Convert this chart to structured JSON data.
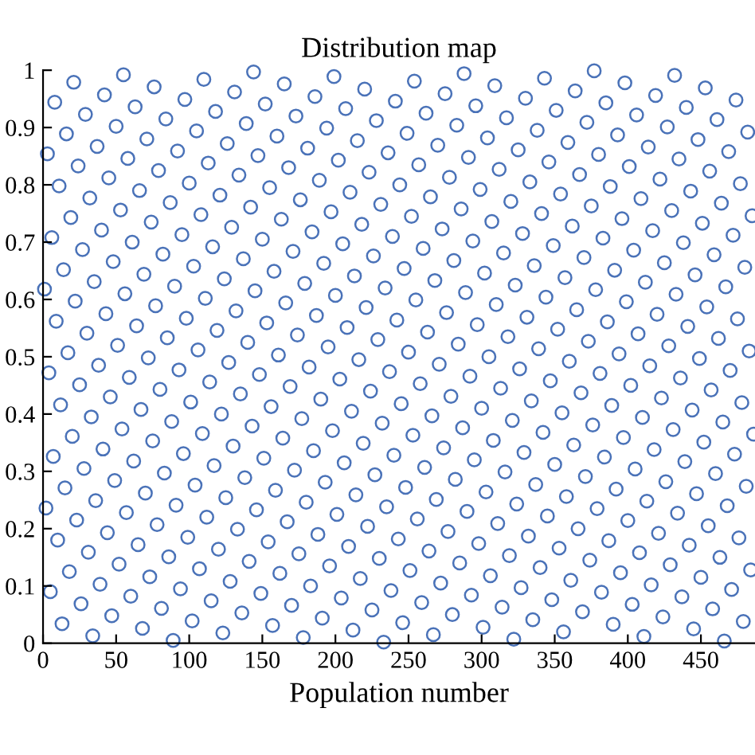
{
  "chart_data": {
    "type": "scatter",
    "title": "Distribution map",
    "xlabel": "Population number",
    "xlim": [
      0,
      487
    ],
    "ylim": [
      0,
      1
    ],
    "xticks": [
      0,
      50,
      100,
      150,
      200,
      250,
      300,
      350,
      400,
      450
    ],
    "yticks": [
      0,
      0.1,
      0.2,
      0.3,
      0.4,
      0.5,
      0.6,
      0.7,
      0.8,
      0.9,
      1
    ],
    "marker": "circle",
    "series": [
      {
        "color": "#4a72b8",
        "x": [
          1,
          2,
          3,
          4,
          5,
          6,
          7,
          8,
          9,
          10,
          11,
          12,
          13,
          14,
          15,
          16,
          17,
          18,
          19,
          20,
          21,
          22,
          23,
          24,
          25,
          26,
          27,
          28,
          29,
          30,
          31,
          32,
          33,
          34,
          35,
          36,
          37,
          38,
          39,
          40,
          41,
          42,
          43,
          44,
          45,
          46,
          47,
          48,
          49,
          50,
          51,
          52,
          53,
          54,
          55,
          56,
          57,
          58,
          59,
          60,
          61,
          62,
          63,
          64,
          65,
          66,
          67,
          68,
          69,
          70,
          71,
          72,
          73,
          74,
          75,
          76,
          77,
          78,
          79,
          80,
          81,
          82,
          83,
          84,
          85,
          86,
          87,
          88,
          89,
          90,
          91,
          92,
          93,
          94,
          95,
          96,
          97,
          98,
          99,
          100,
          101,
          102,
          103,
          104,
          105,
          106,
          107,
          108,
          109,
          110,
          111,
          112,
          113,
          114,
          115,
          116,
          117,
          118,
          119,
          120,
          121,
          122,
          123,
          124,
          125,
          126,
          127,
          128,
          129,
          130,
          131,
          132,
          133,
          134,
          135,
          136,
          137,
          138,
          139,
          140,
          141,
          142,
          143,
          144,
          145,
          146,
          147,
          148,
          149,
          150,
          151,
          152,
          153,
          154,
          155,
          156,
          157,
          158,
          159,
          160,
          161,
          162,
          163,
          164,
          165,
          166,
          167,
          168,
          169,
          170,
          171,
          172,
          173,
          174,
          175,
          176,
          177,
          178,
          179,
          180,
          181,
          182,
          183,
          184,
          185,
          186,
          187,
          188,
          189,
          190,
          191,
          192,
          193,
          194,
          195,
          196,
          197,
          198,
          199,
          200,
          201,
          202,
          203,
          204,
          205,
          206,
          207,
          208,
          209,
          210,
          211,
          212,
          213,
          214,
          215,
          216,
          217,
          218,
          219,
          220,
          221,
          222,
          223,
          224,
          225,
          226,
          227,
          228,
          229,
          230,
          231,
          232,
          233,
          234,
          235,
          236,
          237,
          238,
          239,
          240,
          241,
          242,
          243,
          244,
          245,
          246,
          247,
          248,
          249,
          250,
          251,
          252,
          253,
          254,
          255,
          256,
          257,
          258,
          259,
          260,
          261,
          262,
          263,
          264,
          265,
          266,
          267,
          268,
          269,
          270,
          271,
          272,
          273,
          274,
          275,
          276,
          277,
          278,
          279,
          280,
          281,
          282,
          283,
          284,
          285,
          286,
          287,
          288,
          289,
          290,
          291,
          292,
          293,
          294,
          295,
          296,
          297,
          298,
          299,
          300,
          301,
          302,
          303,
          304,
          305,
          306,
          307,
          308,
          309,
          310,
          311,
          312,
          313,
          314,
          315,
          316,
          317,
          318,
          319,
          320,
          321,
          322,
          323,
          324,
          325,
          326,
          327,
          328,
          329,
          330,
          331,
          332,
          333,
          334,
          335,
          336,
          337,
          338,
          339,
          340,
          341,
          342,
          343,
          344,
          345,
          346,
          347,
          348,
          349,
          350,
          351,
          352,
          353,
          354,
          355,
          356,
          357,
          358,
          359,
          360,
          361,
          362,
          363,
          364,
          365,
          366,
          367,
          368,
          369,
          370,
          371,
          372,
          373,
          374,
          375,
          376,
          377,
          378,
          379,
          380,
          381,
          382,
          383,
          384,
          385,
          386,
          387,
          388,
          389,
          390,
          391,
          392,
          393,
          394,
          395,
          396,
          397,
          398,
          399,
          400,
          401,
          402,
          403,
          404,
          405,
          406,
          407,
          408,
          409,
          410,
          411,
          412,
          413,
          414,
          415,
          416,
          417,
          418,
          419,
          420,
          421,
          422,
          423,
          424,
          425,
          426,
          427,
          428,
          429,
          430,
          431,
          432,
          433,
          434,
          435,
          436,
          437,
          438,
          439,
          440,
          441,
          442,
          443,
          444,
          445,
          446,
          447,
          448,
          449,
          450,
          451,
          452,
          453,
          454,
          455,
          456,
          457,
          458,
          459,
          460,
          461,
          462,
          463,
          464,
          465,
          466,
          467,
          468,
          469,
          470,
          471,
          472,
          473,
          474,
          475,
          476,
          477,
          478,
          479,
          480,
          481,
          482,
          483,
          484,
          485,
          486
        ],
        "values": [
          0.618,
          0.236,
          0.854,
          0.472,
          0.09,
          0.708,
          0.326,
          0.944,
          0.562,
          0.18,
          0.798,
          0.416,
          0.034,
          0.652,
          0.271,
          0.889,
          0.507,
          0.125,
          0.743,
          0.361,
          0.979,
          0.597,
          0.215,
          0.833,
          0.451,
          0.069,
          0.687,
          0.305,
          0.923,
          0.541,
          0.159,
          0.777,
          0.395,
          0.013,
          0.631,
          0.249,
          0.867,
          0.485,
          0.103,
          0.721,
          0.339,
          0.957,
          0.575,
          0.193,
          0.812,
          0.43,
          0.048,
          0.666,
          0.284,
          0.902,
          0.52,
          0.138,
          0.756,
          0.374,
          0.992,
          0.61,
          0.228,
          0.846,
          0.464,
          0.082,
          0.7,
          0.318,
          0.936,
          0.554,
          0.172,
          0.79,
          0.408,
          0.026,
          0.644,
          0.262,
          0.88,
          0.498,
          0.116,
          0.735,
          0.353,
          0.971,
          0.589,
          0.207,
          0.825,
          0.443,
          0.061,
          0.679,
          0.297,
          0.915,
          0.533,
          0.151,
          0.769,
          0.387,
          0.005,
          0.623,
          0.241,
          0.859,
          0.477,
          0.095,
          0.713,
          0.331,
          0.949,
          0.567,
          0.185,
          0.803,
          0.421,
          0.039,
          0.658,
          0.276,
          0.894,
          0.512,
          0.13,
          0.748,
          0.366,
          0.984,
          0.602,
          0.22,
          0.838,
          0.456,
          0.074,
          0.692,
          0.31,
          0.928,
          0.546,
          0.164,
          0.782,
          0.4,
          0.018,
          0.636,
          0.254,
          0.872,
          0.49,
          0.108,
          0.726,
          0.344,
          0.962,
          0.58,
          0.199,
          0.817,
          0.435,
          0.053,
          0.671,
          0.289,
          0.907,
          0.525,
          0.143,
          0.761,
          0.379,
          0.997,
          0.615,
          0.233,
          0.851,
          0.469,
          0.087,
          0.705,
          0.323,
          0.941,
          0.559,
          0.177,
          0.795,
          0.413,
          0.031,
          0.649,
          0.267,
          0.885,
          0.503,
          0.122,
          0.74,
          0.358,
          0.976,
          0.594,
          0.212,
          0.83,
          0.448,
          0.066,
          0.684,
          0.302,
          0.92,
          0.538,
          0.156,
          0.774,
          0.392,
          0.01,
          0.628,
          0.246,
          0.864,
          0.482,
          0.1,
          0.718,
          0.336,
          0.954,
          0.572,
          0.19,
          0.808,
          0.426,
          0.044,
          0.663,
          0.281,
          0.899,
          0.517,
          0.135,
          0.753,
          0.371,
          0.989,
          0.607,
          0.225,
          0.843,
          0.461,
          0.079,
          0.697,
          0.315,
          0.933,
          0.551,
          0.169,
          0.787,
          0.405,
          0.023,
          0.641,
          0.259,
          0.877,
          0.495,
          0.113,
          0.731,
          0.349,
          0.967,
          0.586,
          0.204,
          0.822,
          0.44,
          0.058,
          0.676,
          0.294,
          0.912,
          0.53,
          0.148,
          0.766,
          0.384,
          0.002,
          0.62,
          0.238,
          0.856,
          0.474,
          0.092,
          0.71,
          0.328,
          0.946,
          0.564,
          0.182,
          0.8,
          0.418,
          0.036,
          0.654,
          0.272,
          0.89,
          0.508,
          0.127,
          0.745,
          0.363,
          0.981,
          0.599,
          0.217,
          0.835,
          0.453,
          0.071,
          0.689,
          0.307,
          0.925,
          0.543,
          0.161,
          0.779,
          0.397,
          0.015,
          0.633,
          0.251,
          0.869,
          0.487,
          0.105,
          0.723,
          0.341,
          0.959,
          0.577,
          0.195,
          0.813,
          0.431,
          0.05,
          0.668,
          0.286,
          0.904,
          0.522,
          0.14,
          0.758,
          0.376,
          0.994,
          0.612,
          0.23,
          0.848,
          0.466,
          0.084,
          0.702,
          0.32,
          0.938,
          0.556,
          0.174,
          0.792,
          0.41,
          0.028,
          0.646,
          0.264,
          0.882,
          0.5,
          0.118,
          0.736,
          0.354,
          0.973,
          0.591,
          0.209,
          0.827,
          0.445,
          0.063,
          0.681,
          0.299,
          0.917,
          0.535,
          0.153,
          0.771,
          0.389,
          0.007,
          0.625,
          0.243,
          0.861,
          0.479,
          0.097,
          0.715,
          0.333,
          0.951,
          0.569,
          0.187,
          0.805,
          0.423,
          0.041,
          0.659,
          0.277,
          0.895,
          0.514,
          0.132,
          0.75,
          0.368,
          0.986,
          0.604,
          0.222,
          0.84,
          0.458,
          0.076,
          0.694,
          0.312,
          0.93,
          0.548,
          0.166,
          0.784,
          0.402,
          0.02,
          0.638,
          0.256,
          0.874,
          0.492,
          0.11,
          0.728,
          0.346,
          0.964,
          0.582,
          0.2,
          0.818,
          0.437,
          0.055,
          0.673,
          0.291,
          0.909,
          0.527,
          0.145,
          0.763,
          0.381,
          0.999,
          0.617,
          0.235,
          0.853,
          0.471,
          0.089,
          0.707,
          0.325,
          0.943,
          0.561,
          0.179,
          0.797,
          0.415,
          0.033,
          0.651,
          0.269,
          0.887,
          0.505,
          0.123,
          0.741,
          0.359,
          0.978,
          0.596,
          0.214,
          0.832,
          0.45,
          0.068,
          0.686,
          0.304,
          0.922,
          0.54,
          0.158,
          0.776,
          0.394,
          0.012,
          0.63,
          0.248,
          0.866,
          0.484,
          0.102,
          0.72,
          0.338,
          0.956,
          0.574,
          0.192,
          0.81,
          0.428,
          0.046,
          0.664,
          0.282,
          0.901,
          0.519,
          0.137,
          0.755,
          0.373,
          0.991,
          0.609,
          0.227,
          0.845,
          0.463,
          0.081,
          0.699,
          0.317,
          0.935,
          0.553,
          0.171,
          0.789,
          0.407,
          0.025,
          0.643,
          0.261,
          0.879,
          0.497,
          0.115,
          0.733,
          0.351,
          0.969,
          0.587,
          0.205,
          0.824,
          0.442,
          0.06,
          0.678,
          0.296,
          0.914,
          0.532,
          0.15,
          0.768,
          0.386,
          0.004,
          0.622,
          0.24,
          0.858,
          0.476,
          0.094,
          0.712,
          0.33,
          0.948,
          0.566,
          0.184,
          0.802,
          0.42,
          0.038,
          0.656,
          0.274,
          0.892,
          0.51,
          0.128,
          0.746,
          0.365
        ]
      }
    ]
  }
}
